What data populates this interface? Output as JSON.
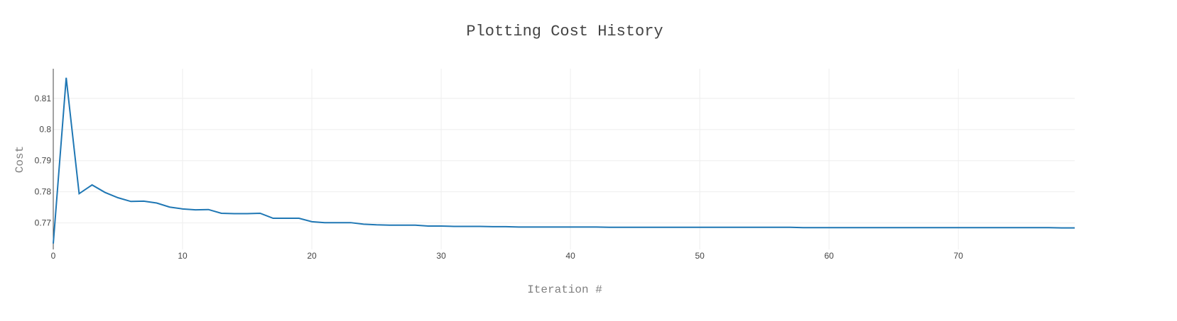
{
  "chart_data": {
    "type": "line",
    "title": "Plotting Cost History",
    "xlabel": "Iteration #",
    "ylabel": "Cost",
    "xlim": [
      0,
      79
    ],
    "ylim": [
      0.7615,
      0.8195
    ],
    "xticks": [
      0,
      10,
      20,
      30,
      40,
      50,
      60,
      70
    ],
    "yticks": [
      0.77,
      0.78,
      0.79,
      0.8,
      0.81
    ],
    "ytick_labels": [
      "0.77",
      "0.78",
      "0.79",
      "0.8",
      "0.81"
    ],
    "grid": true,
    "line_color": "#1f77b4",
    "x": [
      0,
      1,
      2,
      3,
      4,
      5,
      6,
      7,
      8,
      9,
      10,
      11,
      12,
      13,
      14,
      15,
      16,
      17,
      18,
      19,
      20,
      21,
      22,
      23,
      24,
      25,
      26,
      27,
      28,
      29,
      30,
      31,
      32,
      33,
      34,
      35,
      36,
      37,
      38,
      39,
      40,
      41,
      42,
      43,
      44,
      45,
      46,
      47,
      48,
      49,
      50,
      51,
      52,
      53,
      54,
      55,
      56,
      57,
      58,
      59,
      60,
      61,
      62,
      63,
      64,
      65,
      66,
      67,
      68,
      69,
      70,
      71,
      72,
      73,
      74,
      75,
      76,
      77,
      78,
      79
    ],
    "values": [
      0.7634,
      0.8166,
      0.7794,
      0.7822,
      0.7798,
      0.7781,
      0.7769,
      0.777,
      0.7764,
      0.7751,
      0.7745,
      0.7742,
      0.7743,
      0.7731,
      0.773,
      0.773,
      0.7731,
      0.7715,
      0.7715,
      0.7715,
      0.7704,
      0.7701,
      0.7701,
      0.7701,
      0.7696,
      0.7694,
      0.7693,
      0.7693,
      0.7693,
      0.769,
      0.769,
      0.7689,
      0.7689,
      0.7689,
      0.7688,
      0.7688,
      0.7687,
      0.7687,
      0.7687,
      0.7687,
      0.7687,
      0.7687,
      0.7687,
      0.7686,
      0.7686,
      0.7686,
      0.7686,
      0.7686,
      0.7686,
      0.7686,
      0.7686,
      0.7686,
      0.7686,
      0.7686,
      0.7686,
      0.7686,
      0.7686,
      0.7686,
      0.7685,
      0.7685,
      0.7685,
      0.7685,
      0.7685,
      0.7685,
      0.7685,
      0.7685,
      0.7685,
      0.7685,
      0.7685,
      0.7685,
      0.7685,
      0.7685,
      0.7685,
      0.7685,
      0.7685,
      0.7685,
      0.7685,
      0.7685,
      0.7684,
      0.7684
    ]
  }
}
